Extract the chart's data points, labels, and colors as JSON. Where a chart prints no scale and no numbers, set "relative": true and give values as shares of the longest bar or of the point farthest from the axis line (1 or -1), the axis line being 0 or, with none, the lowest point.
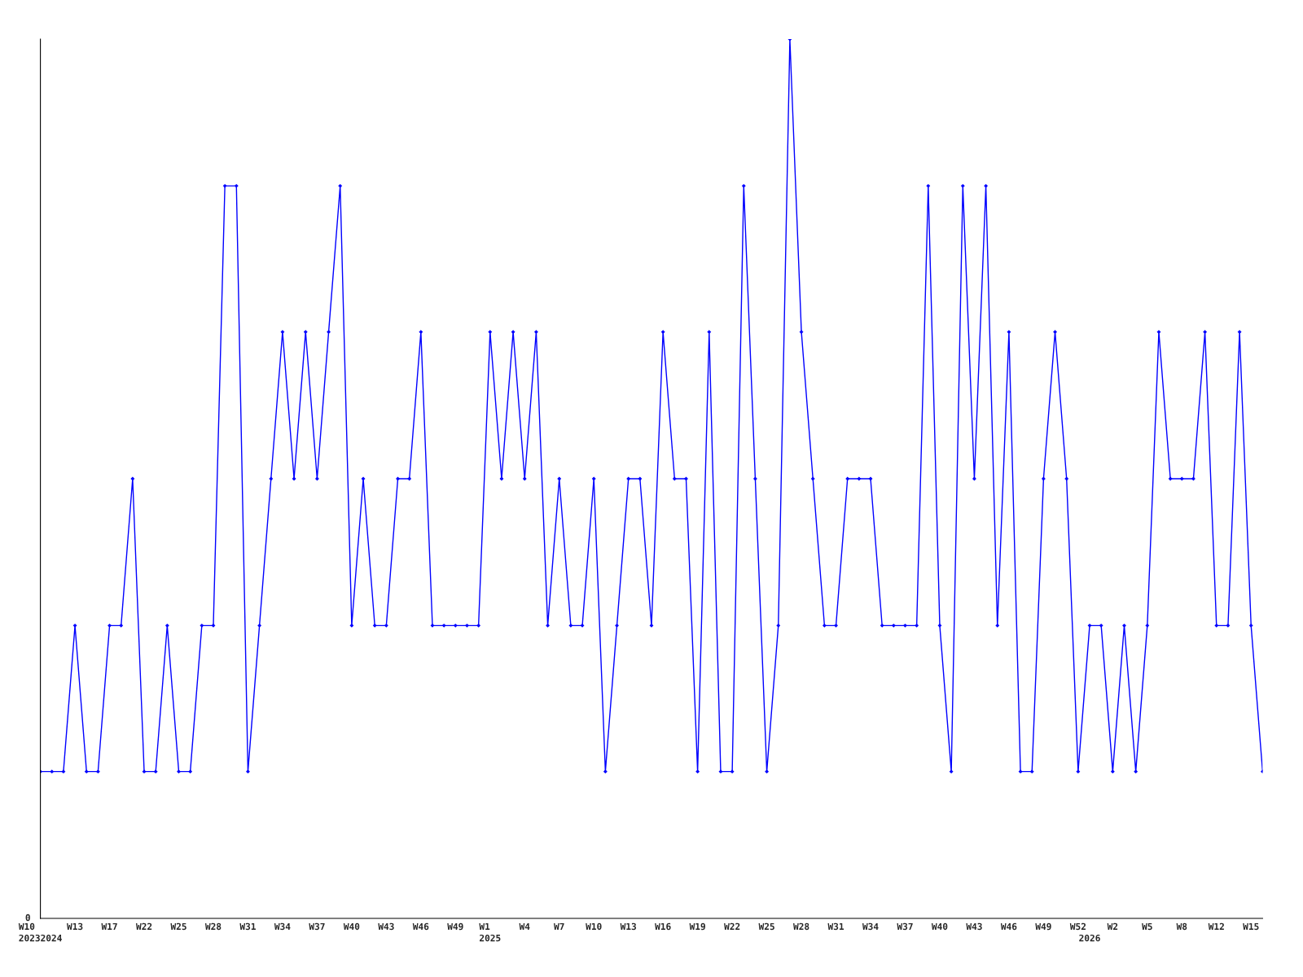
{
  "chart_data": {
    "type": "line",
    "relative": true,
    "marker": "diamond",
    "line_style": "solid",
    "grid": false,
    "legend": false,
    "annotations": [
      "0"
    ],
    "categories": [
      "W10\n20232024",
      null,
      null,
      "W13",
      null,
      null,
      "W17",
      null,
      null,
      "W22",
      null,
      null,
      "W25",
      null,
      null,
      "W28",
      null,
      null,
      "W31",
      null,
      null,
      "W34",
      null,
      null,
      "W37",
      null,
      null,
      "W40",
      null,
      null,
      "W43",
      null,
      null,
      "W46",
      null,
      null,
      "W49",
      null,
      null,
      "W1\n2025",
      null,
      null,
      "W4",
      null,
      null,
      "W7",
      null,
      null,
      "W10",
      null,
      null,
      "W13",
      null,
      null,
      "W16",
      null,
      null,
      "W19",
      null,
      null,
      "W22",
      null,
      null,
      "W25",
      null,
      null,
      "W28",
      null,
      null,
      "W31",
      null,
      null,
      "W34",
      null,
      null,
      "W37",
      null,
      null,
      "W40",
      null,
      null,
      "W43",
      null,
      null,
      "W46",
      null,
      null,
      "W49",
      null,
      null,
      "W52",
      "\n2026",
      null,
      "W2",
      null,
      null,
      "W5",
      null,
      null,
      "W8",
      null,
      null,
      "W12",
      null,
      null,
      "W15",
      null
    ],
    "series": [
      {
        "color": "#0000ff",
        "values": [
          0.167,
          0.167,
          0.167,
          0.333,
          0.167,
          0.167,
          0.333,
          0.333,
          0.5,
          0.167,
          0.167,
          0.333,
          0.167,
          0.167,
          0.333,
          0.333,
          0.833,
          0.833,
          0.167,
          0.333,
          0.5,
          0.667,
          0.5,
          0.667,
          0.5,
          0.667,
          0.833,
          0.333,
          0.5,
          0.333,
          0.333,
          0.5,
          0.5,
          0.667,
          0.333,
          0.333,
          0.333,
          0.333,
          0.333,
          0.667,
          0.5,
          0.667,
          0.5,
          0.667,
          0.333,
          0.5,
          0.333,
          0.333,
          0.5,
          0.167,
          0.333,
          0.5,
          0.5,
          0.333,
          0.667,
          0.5,
          0.5,
          0.167,
          0.667,
          0.167,
          0.167,
          0.833,
          0.5,
          0.167,
          0.333,
          1,
          0.667,
          0.5,
          0.333,
          0.333,
          0.5,
          0.5,
          0.5,
          0.333,
          0.333,
          0.333,
          0.333,
          0.833,
          0.333,
          0.167,
          0.833,
          0.5,
          0.833,
          0.333,
          0.667,
          0.167,
          0.167,
          0.5,
          0.667,
          0.5,
          0.167,
          0.333,
          0.333,
          0.167,
          0.333,
          0.167,
          0.333,
          0.667,
          0.5,
          0.5,
          0.5,
          0.667,
          0.333,
          0.333,
          0.667,
          0.333,
          0.167
        ]
      }
    ]
  }
}
